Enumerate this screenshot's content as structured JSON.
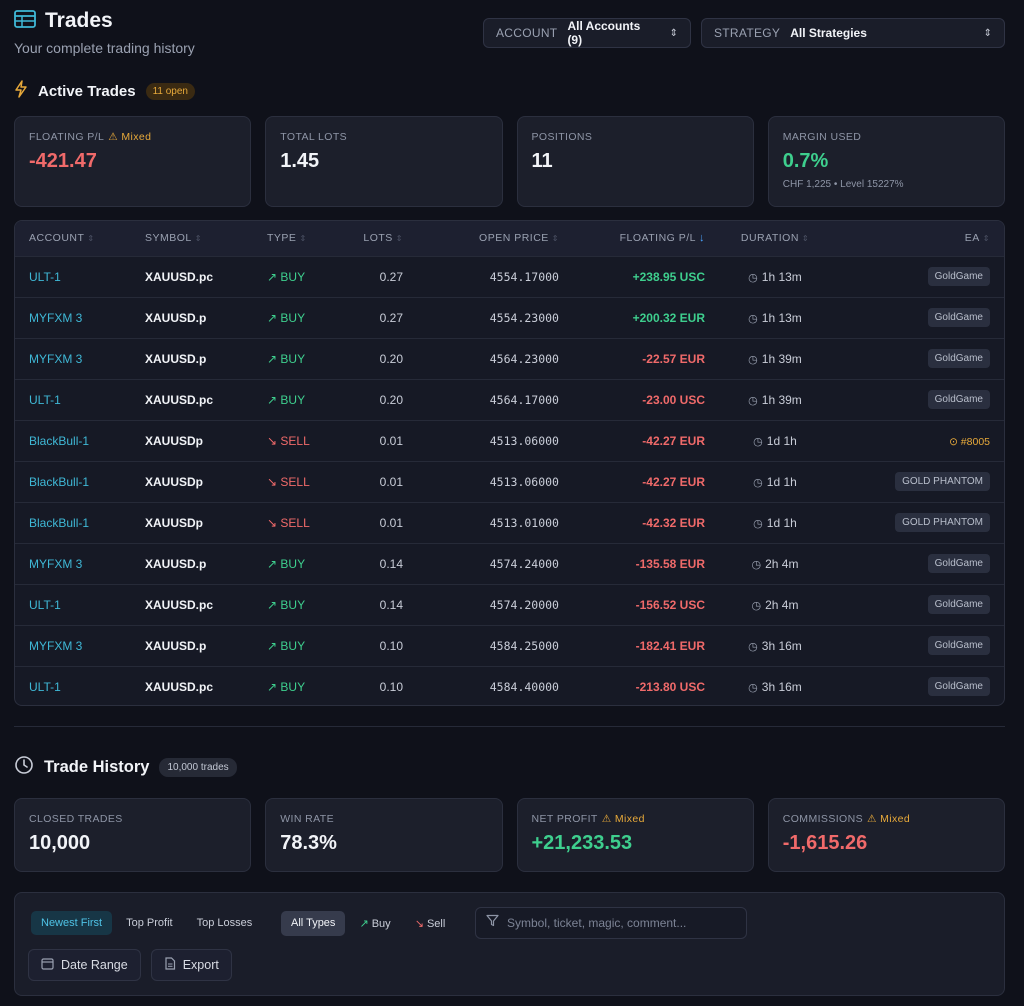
{
  "header": {
    "title": "Trades",
    "subtitle": "Your complete trading history",
    "account_label": "ACCOUNT",
    "account_value": "All Accounts (9)",
    "strategy_label": "STRATEGY",
    "strategy_value": "All Strategies"
  },
  "active": {
    "title": "Active Trades",
    "badge": "11 open",
    "cards": [
      {
        "label": "FLOATING P/L",
        "warn": "⚠ Mixed",
        "value": "-421.47"
      },
      {
        "label": "TOTAL LOTS",
        "value": "1.45"
      },
      {
        "label": "POSITIONS",
        "value": "11"
      },
      {
        "label": "MARGIN USED",
        "value": "0.7%",
        "sub": "CHF 1,225 • Level 15227%"
      }
    ],
    "columns": [
      "ACCOUNT",
      "SYMBOL",
      "TYPE",
      "LOTS",
      "OPEN PRICE",
      "FLOATING P/L",
      "DURATION",
      "EA"
    ],
    "rows": [
      {
        "account": "ULT-1",
        "symbol": "XAUUSD.pc",
        "type": "BUY",
        "lots": "0.27",
        "open": "4554.17000",
        "fpl": "+238.95 USC",
        "duration": "1h 13m",
        "ea": "GoldGame"
      },
      {
        "account": "MYFXM 3",
        "symbol": "XAUUSD.p",
        "type": "BUY",
        "lots": "0.27",
        "open": "4554.23000",
        "fpl": "+200.32 EUR",
        "duration": "1h 13m",
        "ea": "GoldGame"
      },
      {
        "account": "MYFXM 3",
        "symbol": "XAUUSD.p",
        "type": "BUY",
        "lots": "0.20",
        "open": "4564.23000",
        "fpl": "-22.57 EUR",
        "duration": "1h 39m",
        "ea": "GoldGame"
      },
      {
        "account": "ULT-1",
        "symbol": "XAUUSD.pc",
        "type": "BUY",
        "lots": "0.20",
        "open": "4564.17000",
        "fpl": "-23.00 USC",
        "duration": "1h 39m",
        "ea": "GoldGame"
      },
      {
        "account": "BlackBull-1",
        "symbol": "XAUUSDp",
        "type": "SELL",
        "lots": "0.01",
        "open": "4513.06000",
        "fpl": "-42.27 EUR",
        "duration": "1d 1h",
        "ea": "#8005"
      },
      {
        "account": "BlackBull-1",
        "symbol": "XAUUSDp",
        "type": "SELL",
        "lots": "0.01",
        "open": "4513.06000",
        "fpl": "-42.27 EUR",
        "duration": "1d 1h",
        "ea": "GOLD PHANTOM"
      },
      {
        "account": "BlackBull-1",
        "symbol": "XAUUSDp",
        "type": "SELL",
        "lots": "0.01",
        "open": "4513.01000",
        "fpl": "-42.32 EUR",
        "duration": "1d 1h",
        "ea": "GOLD PHANTOM"
      },
      {
        "account": "MYFXM 3",
        "symbol": "XAUUSD.p",
        "type": "BUY",
        "lots": "0.14",
        "open": "4574.24000",
        "fpl": "-135.58 EUR",
        "duration": "2h 4m",
        "ea": "GoldGame"
      },
      {
        "account": "ULT-1",
        "symbol": "XAUUSD.pc",
        "type": "BUY",
        "lots": "0.14",
        "open": "4574.20000",
        "fpl": "-156.52 USC",
        "duration": "2h 4m",
        "ea": "GoldGame"
      },
      {
        "account": "MYFXM 3",
        "symbol": "XAUUSD.p",
        "type": "BUY",
        "lots": "0.10",
        "open": "4584.25000",
        "fpl": "-182.41 EUR",
        "duration": "3h 16m",
        "ea": "GoldGame"
      },
      {
        "account": "ULT-1",
        "symbol": "XAUUSD.pc",
        "type": "BUY",
        "lots": "0.10",
        "open": "4584.40000",
        "fpl": "-213.80 USC",
        "duration": "3h 16m",
        "ea": "GoldGame"
      }
    ]
  },
  "history": {
    "title": "Trade History",
    "badge": "10,000 trades",
    "cards": [
      {
        "label": "CLOSED TRADES",
        "value": "10,000"
      },
      {
        "label": "WIN RATE",
        "value": "78.3%"
      },
      {
        "label": "NET PROFIT",
        "warn": "⚠ Mixed",
        "value": "+21,233.53"
      },
      {
        "label": "COMMISSIONS",
        "warn": "⚠ Mixed",
        "value": "-1,615.26"
      }
    ],
    "sort_options": [
      "Newest First",
      "Top Profit",
      "Top Losses"
    ],
    "type_options": [
      "All Types",
      "Buy",
      "Sell"
    ],
    "search_placeholder": "Symbol, ticket, magic, comment...",
    "date_range": "Date Range",
    "export": "Export"
  },
  "colors": {
    "accent": "#3fb8d6",
    "positive": "#3ecf8e",
    "negative": "#f06a6a",
    "warning": "#e7a93a",
    "background": "#0f111a"
  }
}
